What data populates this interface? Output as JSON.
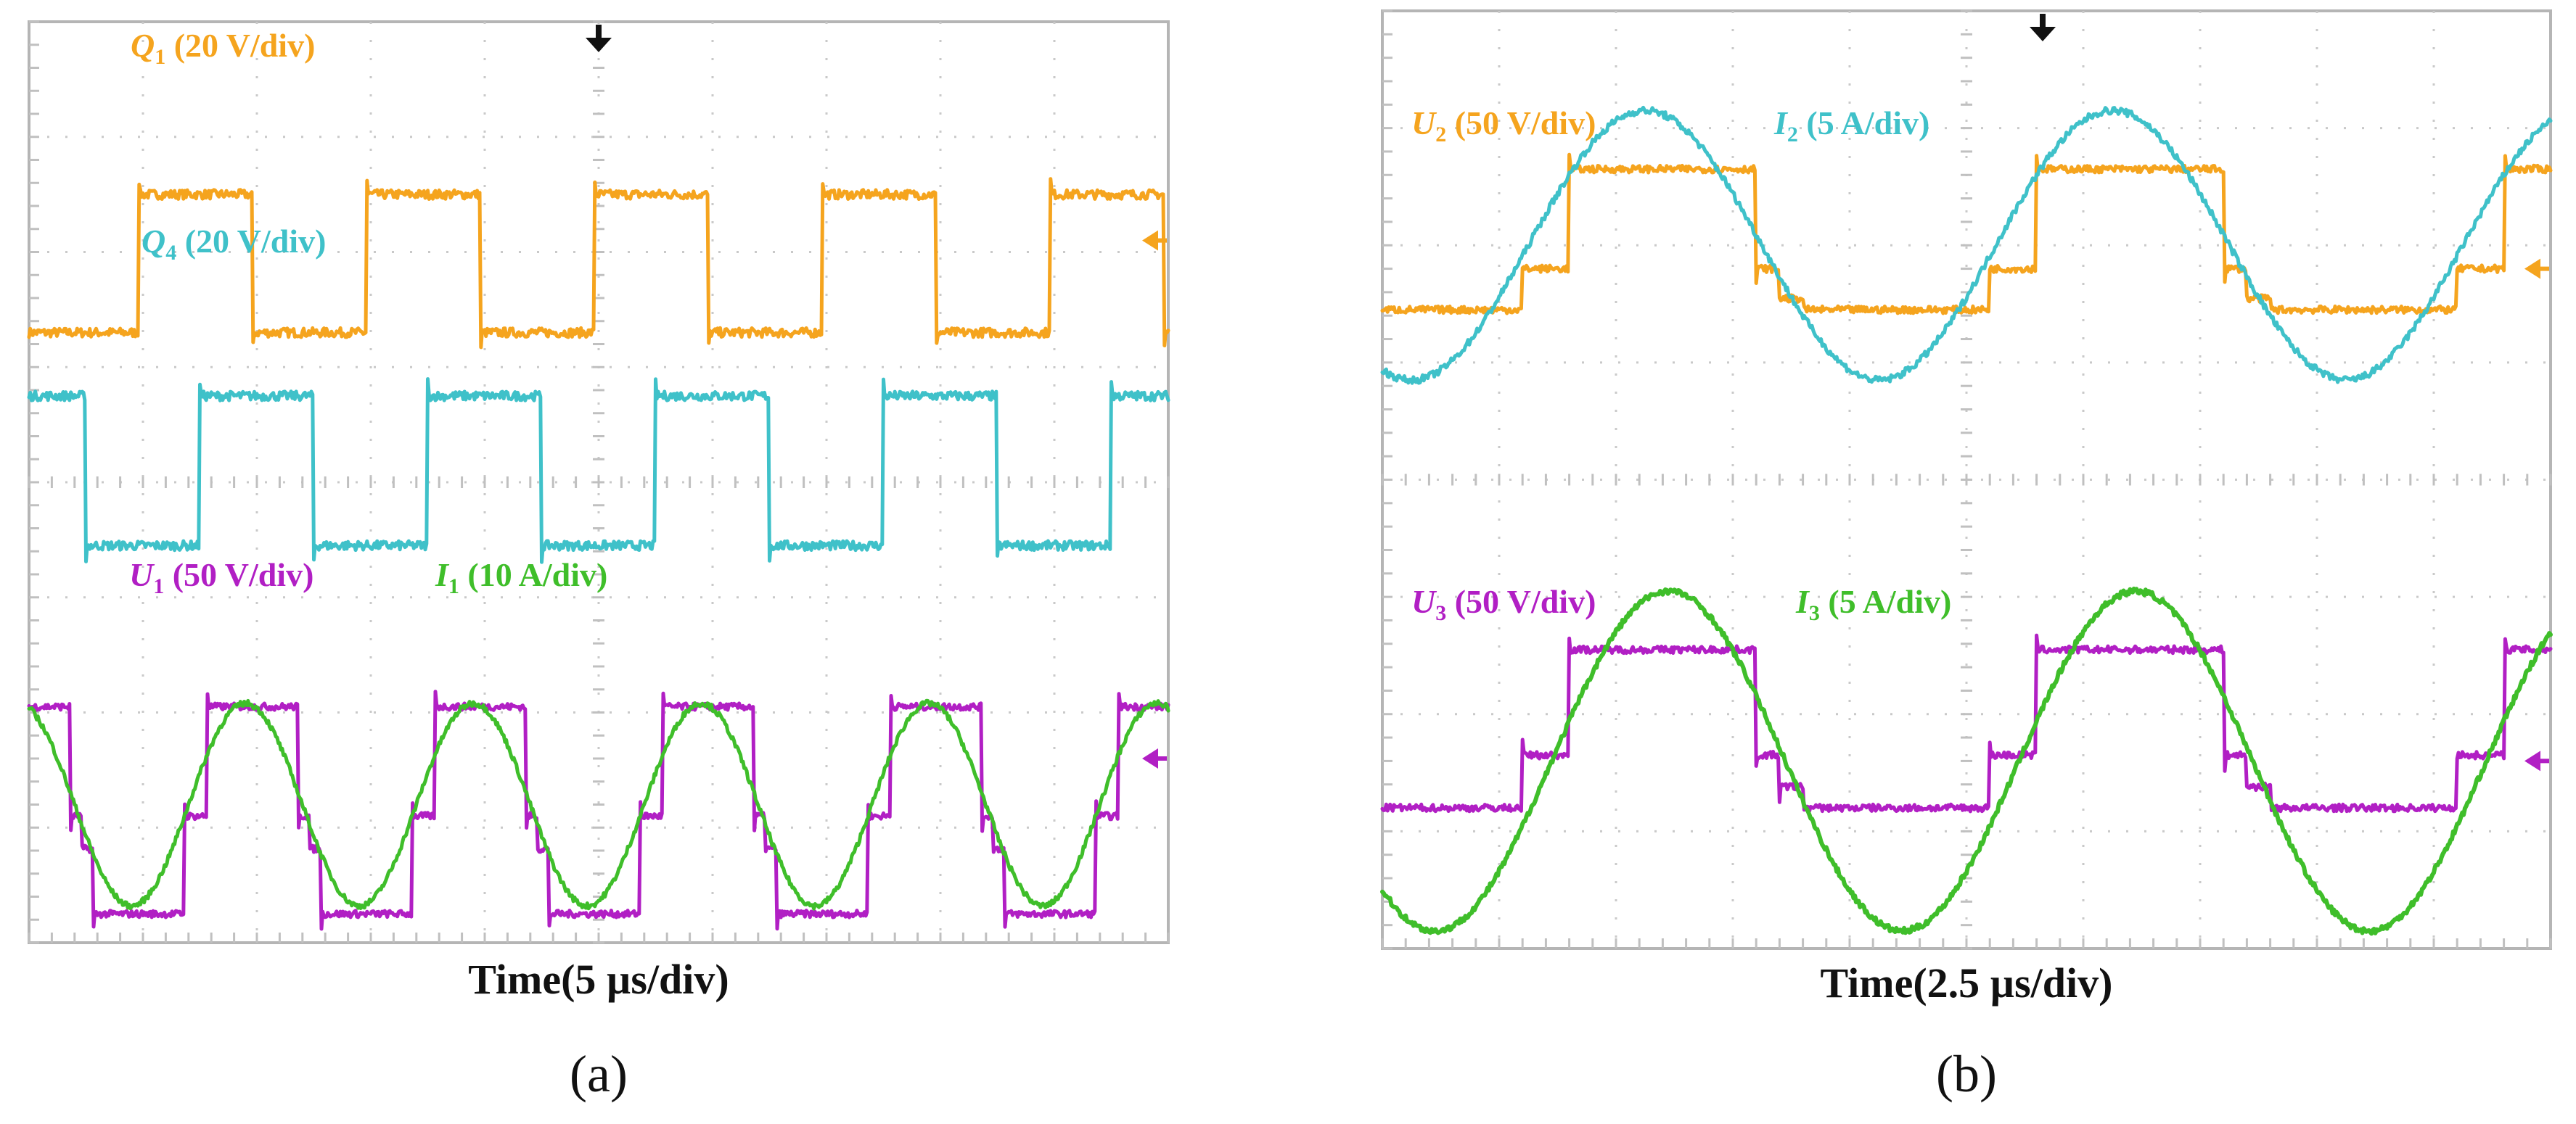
{
  "chart_data": [
    {
      "type": "line",
      "panel_label": "(a)",
      "xlabel": "Time(5 µs/div)",
      "grid": true,
      "x_divisions": 10,
      "y_divisions": 8,
      "time_per_div_us": 5,
      "series": [
        {
          "name": "Q1",
          "label": {
            "var": "Q",
            "sub": "1",
            "scale": " (20 V/div)"
          },
          "color": "#F5A41E",
          "kind": "pwm",
          "period_div": 2.0,
          "phase_div": 0.96,
          "duty": 0.5,
          "high_div": 6.5,
          "low_div": 5.3,
          "width": 5,
          "noise_div": 0.04
        },
        {
          "name": "Q4",
          "label": {
            "var": "Q",
            "sub": "4",
            "scale": " (20 V/div)"
          },
          "color": "#3FC1C9",
          "kind": "pwm",
          "period_div": 2.0,
          "phase_div": 1.5,
          "duty": 0.5,
          "high_div": 4.75,
          "low_div": 3.45,
          "width": 5,
          "noise_div": 0.04
        },
        {
          "name": "U1",
          "label": {
            "var": "U",
            "sub": "1",
            "scale": " (50 V/div)"
          },
          "color": "#B11FC4",
          "kind": "stepped",
          "period_div": 2.0,
          "phase_div": 1.46,
          "high_div": 2.05,
          "mid_div": 1.1,
          "low_div": 0.25,
          "width": 5,
          "noise_div": 0.03
        },
        {
          "name": "I1",
          "label": {
            "var": "I",
            "sub": "1",
            "scale": " (10 A/div)"
          },
          "color": "#3FBE2A",
          "kind": "sine",
          "period_div": 2.0,
          "phase_div": 1.4,
          "center_div": 1.2,
          "amplitude_div": 0.88,
          "width": 5,
          "noise_div": 0.025
        }
      ]
    },
    {
      "type": "line",
      "panel_label": "(b)",
      "xlabel": "Time(2.5 µs/div)",
      "grid": true,
      "x_divisions": 10,
      "y_divisions": 8,
      "time_per_div_us": 2.5,
      "series": [
        {
          "name": "U2",
          "label": {
            "var": "U",
            "sub": "2",
            "scale": " (50 V/div)"
          },
          "color": "#F5A41E",
          "kind": "stepped",
          "period_div": 4.0,
          "phase_div": 1.4,
          "high_div": 6.65,
          "mid_div": 5.8,
          "low_div": 5.45,
          "width": 5,
          "noise_div": 0.03
        },
        {
          "name": "I2",
          "label": {
            "var": "I",
            "sub": "2",
            "scale": " (5 A/div)"
          },
          "color": "#3FC1C9",
          "kind": "sine",
          "period_div": 4.0,
          "phase_div": 1.25,
          "center_div": 6.0,
          "amplitude_div": 1.15,
          "width": 5,
          "noise_div": 0.03
        },
        {
          "name": "U3",
          "label": {
            "var": "U",
            "sub": "3",
            "scale": " (50 V/div)"
          },
          "color": "#B11FC4",
          "kind": "stepped",
          "period_div": 4.0,
          "phase_div": 1.4,
          "high_div": 2.55,
          "mid_div": 1.65,
          "low_div": 1.2,
          "width": 5,
          "noise_div": 0.03
        },
        {
          "name": "I3",
          "label": {
            "var": "I",
            "sub": "3",
            "scale": " (5 A/div)"
          },
          "color": "#3FBE2A",
          "kind": "sine",
          "period_div": 4.0,
          "phase_div": 1.45,
          "center_div": 1.6,
          "amplitude_div": 1.45,
          "width": 6,
          "noise_div": 0.025
        }
      ]
    }
  ]
}
